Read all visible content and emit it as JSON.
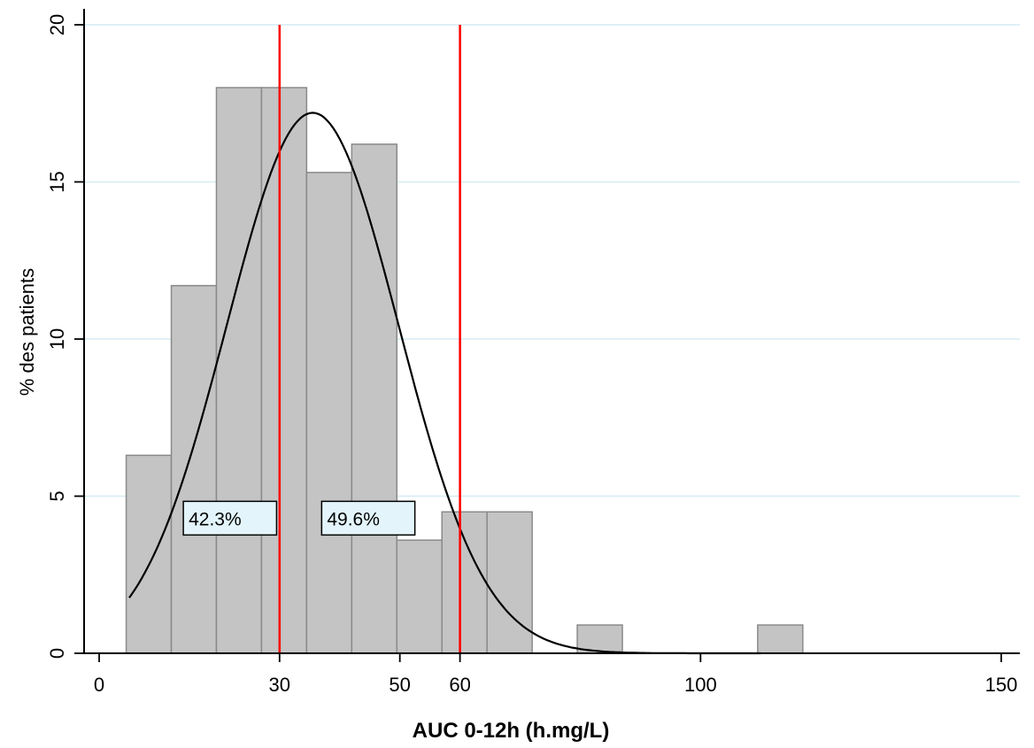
{
  "chart_data": {
    "type": "bar",
    "xlabel": "AUC 0-12h (h.mg/L)",
    "ylabel": "% des patients",
    "xlim": [
      0,
      150
    ],
    "ylim": [
      0,
      20
    ],
    "x_ticks": [
      0,
      30,
      50,
      60,
      100,
      150
    ],
    "y_ticks": [
      0,
      5,
      10,
      15,
      20
    ],
    "grid": "horizontal",
    "bins": [
      {
        "from": 4.5,
        "to": 12,
        "value": 6.3
      },
      {
        "from": 12,
        "to": 19.5,
        "value": 11.7
      },
      {
        "from": 19.5,
        "to": 27,
        "value": 18.0
      },
      {
        "from": 27,
        "to": 34.5,
        "value": 18.0
      },
      {
        "from": 34.5,
        "to": 42,
        "value": 15.3
      },
      {
        "from": 42,
        "to": 49.5,
        "value": 16.2
      },
      {
        "from": 49.5,
        "to": 57,
        "value": 3.6
      },
      {
        "from": 57,
        "to": 64.5,
        "value": 4.5
      },
      {
        "from": 64.5,
        "to": 72,
        "value": 4.5
      },
      {
        "from": 72,
        "to": 79.5,
        "value": 0
      },
      {
        "from": 79.5,
        "to": 87,
        "value": 0.9
      },
      {
        "from": 87,
        "to": 94.5,
        "value": 0
      },
      {
        "from": 94.5,
        "to": 102,
        "value": 0
      },
      {
        "from": 102,
        "to": 109.5,
        "value": 0
      },
      {
        "from": 109.5,
        "to": 117,
        "value": 0.9
      }
    ],
    "density_curve": {
      "mean": 35.5,
      "sd": 14.3,
      "x_start": 5,
      "x_end": 110,
      "peak": 17.2
    },
    "reference_lines": [
      30,
      60
    ],
    "annotations": [
      {
        "text": "42.3%",
        "x_from": 14,
        "x_to": 29.5,
        "y": 4.3
      },
      {
        "text": "49.6%",
        "x_from": 37,
        "x_to": 52.5,
        "y": 4.3
      }
    ],
    "colors": {
      "bar_fill": "#c4c4c4",
      "bar_stroke": "#8a8a8a",
      "curve": "#000000",
      "reference_line": "#ff0000",
      "grid": "#d5ecf4",
      "annotation_fill": "#e3f5fb"
    }
  }
}
